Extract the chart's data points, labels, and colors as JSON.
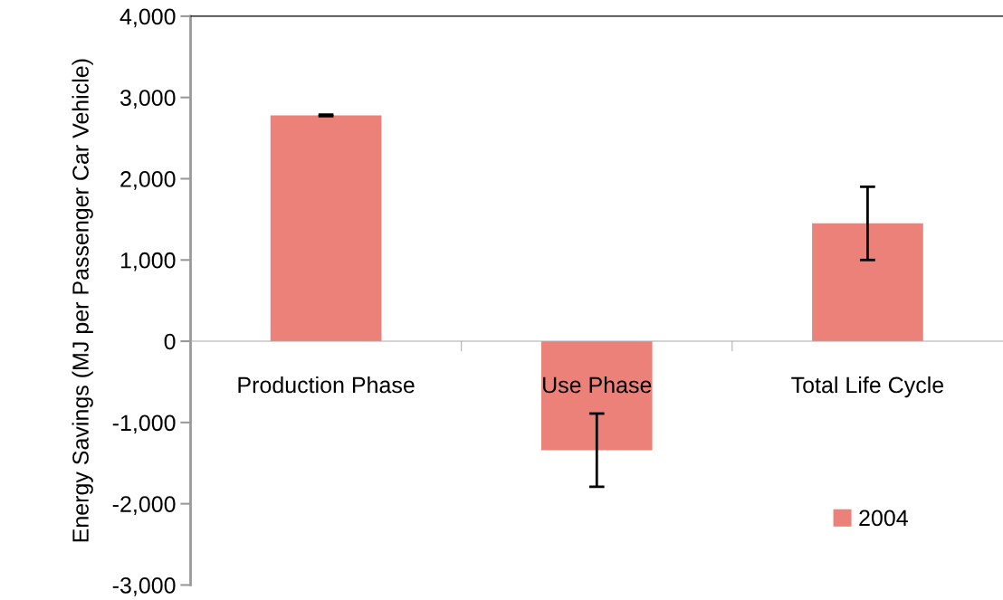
{
  "chart_data": {
    "type": "bar",
    "ylabel": "Energy Savings (MJ per Passenger Car Vehicle)",
    "categories": [
      "Production Phase",
      "Use Phase",
      "Total Life Cycle"
    ],
    "series": [
      {
        "name": "2004",
        "color": "#ec8179",
        "values": [
          2780,
          -1340,
          1450
        ],
        "errors": [
          10,
          450,
          450
        ]
      }
    ],
    "ylim": [
      -3000,
      4000
    ],
    "yticks": [
      {
        "value": -3000,
        "label": "-3,000"
      },
      {
        "value": -2000,
        "label": "-2,000"
      },
      {
        "value": -1000,
        "label": "-1,000"
      },
      {
        "value": 0,
        "label": "0"
      },
      {
        "value": 1000,
        "label": "1,000"
      },
      {
        "value": 2000,
        "label": "2,000"
      },
      {
        "value": 3000,
        "label": "3,000"
      },
      {
        "value": 4000,
        "label": "4,000"
      }
    ],
    "grid": false,
    "legend": "bottom right"
  }
}
